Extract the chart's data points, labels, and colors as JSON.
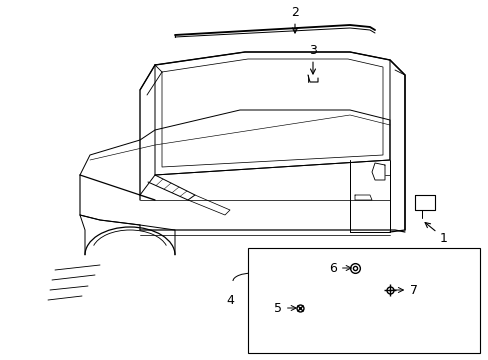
{
  "fig_width": 4.89,
  "fig_height": 3.6,
  "dpi": 100,
  "bg_color": "#ffffff",
  "line_color": "#000000",
  "lw": 0.9
}
